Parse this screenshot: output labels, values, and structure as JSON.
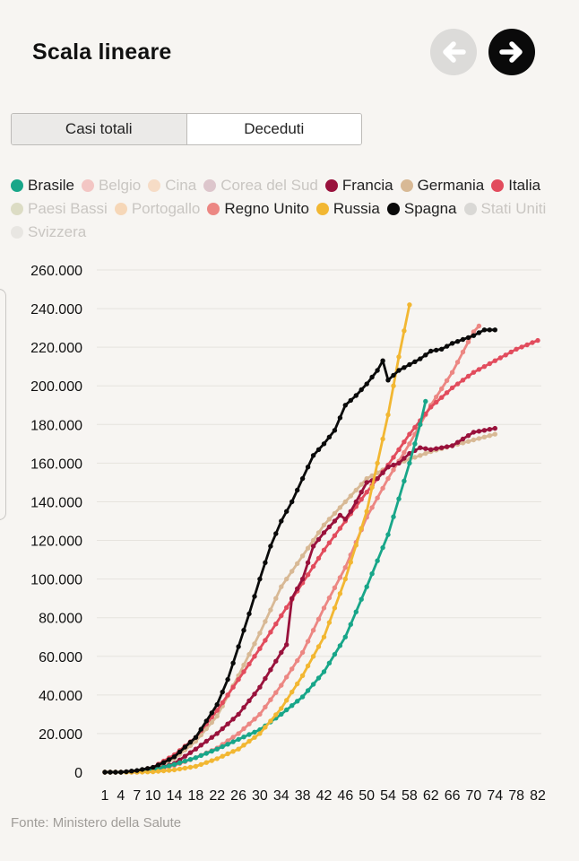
{
  "header": {
    "title": "Scala lineare"
  },
  "tabs": [
    {
      "label": "Casi totali",
      "active": true
    },
    {
      "label": "Deceduti",
      "active": false
    }
  ],
  "source": "Fonte: Ministero della Salute",
  "icons": {
    "prev": "arrow-left-icon",
    "next": "arrow-right-icon"
  },
  "chart_data": {
    "type": "line",
    "title": "",
    "xlabel": "",
    "ylabel": "",
    "x_ticks": [
      1,
      4,
      7,
      10,
      14,
      18,
      22,
      26,
      30,
      34,
      38,
      42,
      46,
      50,
      54,
      58,
      62,
      66,
      70,
      74,
      78,
      82
    ],
    "xlim": [
      1,
      82
    ],
    "y_ticks": [
      0,
      20000,
      40000,
      60000,
      80000,
      100000,
      120000,
      140000,
      160000,
      180000,
      200000,
      220000,
      240000,
      260000
    ],
    "y_tick_labels": [
      "0",
      "20.000",
      "40.000",
      "60.000",
      "80.000",
      "100.000",
      "120.000",
      "140.000",
      "160.000",
      "180.000",
      "200.000",
      "220.000",
      "240.000",
      "260.000"
    ],
    "ylim": [
      0,
      260000
    ],
    "grid": true,
    "legend_position": "top",
    "series": [
      {
        "name": "Brasile",
        "color": "#18a689",
        "active": true,
        "points": [
          [
            1,
            0
          ],
          [
            4,
            0
          ],
          [
            7,
            200
          ],
          [
            10,
            1200
          ],
          [
            14,
            4000
          ],
          [
            18,
            7500
          ],
          [
            22,
            12000
          ],
          [
            26,
            17000
          ],
          [
            30,
            22000
          ],
          [
            34,
            30000
          ],
          [
            38,
            39000
          ],
          [
            42,
            52000
          ],
          [
            46,
            70000
          ],
          [
            50,
            96000
          ],
          [
            54,
            123000
          ],
          [
            58,
            160000
          ],
          [
            60,
            180000
          ],
          [
            61,
            192000
          ]
        ]
      },
      {
        "name": "Belgio",
        "color": "#f3c6c4",
        "active": false,
        "points": []
      },
      {
        "name": "Cina",
        "color": "#f6dcc6",
        "active": false,
        "points": []
      },
      {
        "name": "Corea del Sud",
        "color": "#ddc6cc",
        "active": false,
        "points": []
      },
      {
        "name": "Francia",
        "color": "#99123c",
        "active": true,
        "points": [
          [
            1,
            0
          ],
          [
            4,
            0
          ],
          [
            7,
            100
          ],
          [
            10,
            1200
          ],
          [
            14,
            4500
          ],
          [
            18,
            12000
          ],
          [
            22,
            20000
          ],
          [
            26,
            30000
          ],
          [
            30,
            44000
          ],
          [
            34,
            62000
          ],
          [
            35,
            66000
          ],
          [
            36,
            90000
          ],
          [
            38,
            100000
          ],
          [
            40,
            117000
          ],
          [
            42,
            124000
          ],
          [
            44,
            130000
          ],
          [
            45,
            133000
          ],
          [
            46,
            131000
          ],
          [
            47,
            135000
          ],
          [
            48,
            140000
          ],
          [
            50,
            150000
          ],
          [
            52,
            152000
          ],
          [
            54,
            158000
          ],
          [
            56,
            160000
          ],
          [
            58,
            165000
          ],
          [
            60,
            168000
          ],
          [
            62,
            167000
          ],
          [
            66,
            169000
          ],
          [
            70,
            176000
          ],
          [
            74,
            178000
          ]
        ]
      },
      {
        "name": "Germania",
        "color": "#d8b995",
        "active": true,
        "points": [
          [
            1,
            0
          ],
          [
            4,
            0
          ],
          [
            7,
            300
          ],
          [
            10,
            2000
          ],
          [
            14,
            7000
          ],
          [
            18,
            16000
          ],
          [
            22,
            29000
          ],
          [
            26,
            50000
          ],
          [
            30,
            72000
          ],
          [
            34,
            96000
          ],
          [
            38,
            112000
          ],
          [
            42,
            128000
          ],
          [
            46,
            140000
          ],
          [
            50,
            152000
          ],
          [
            54,
            158000
          ],
          [
            58,
            162000
          ],
          [
            62,
            166000
          ],
          [
            66,
            169000
          ],
          [
            70,
            172000
          ],
          [
            74,
            175000
          ]
        ]
      },
      {
        "name": "Italia",
        "color": "#e24c5d",
        "active": true,
        "points": [
          [
            1,
            0
          ],
          [
            4,
            0
          ],
          [
            7,
            600
          ],
          [
            10,
            2500
          ],
          [
            14,
            9000
          ],
          [
            18,
            18000
          ],
          [
            22,
            32000
          ],
          [
            26,
            48000
          ],
          [
            30,
            64000
          ],
          [
            34,
            81000
          ],
          [
            38,
            98000
          ],
          [
            42,
            115000
          ],
          [
            46,
            130000
          ],
          [
            50,
            145000
          ],
          [
            54,
            159000
          ],
          [
            58,
            175000
          ],
          [
            62,
            189000
          ],
          [
            66,
            199000
          ],
          [
            70,
            207000
          ],
          [
            74,
            213000
          ],
          [
            78,
            219000
          ],
          [
            82,
            223500
          ]
        ]
      },
      {
        "name": "Paesi Bassi",
        "color": "#dcdcc4",
        "active": false,
        "points": []
      },
      {
        "name": "Portogallo",
        "color": "#f6d7b8",
        "active": false,
        "points": []
      },
      {
        "name": "Regno Unito",
        "color": "#ec8783",
        "active": true,
        "points": [
          [
            1,
            0
          ],
          [
            4,
            0
          ],
          [
            7,
            100
          ],
          [
            10,
            800
          ],
          [
            14,
            3500
          ],
          [
            18,
            7500
          ],
          [
            22,
            12500
          ],
          [
            26,
            20000
          ],
          [
            30,
            30000
          ],
          [
            34,
            45000
          ],
          [
            38,
            62000
          ],
          [
            42,
            85000
          ],
          [
            46,
            106000
          ],
          [
            50,
            132000
          ],
          [
            54,
            152000
          ],
          [
            58,
            170000
          ],
          [
            62,
            190000
          ],
          [
            66,
            207000
          ],
          [
            70,
            228000
          ],
          [
            71,
            231000
          ]
        ]
      },
      {
        "name": "Russia",
        "color": "#f2b732",
        "active": true,
        "points": [
          [
            1,
            0
          ],
          [
            4,
            0
          ],
          [
            7,
            0
          ],
          [
            10,
            200
          ],
          [
            14,
            1200
          ],
          [
            18,
            3000
          ],
          [
            22,
            7000
          ],
          [
            26,
            12000
          ],
          [
            30,
            20000
          ],
          [
            34,
            33000
          ],
          [
            38,
            50000
          ],
          [
            42,
            70000
          ],
          [
            46,
            100000
          ],
          [
            50,
            135000
          ],
          [
            54,
            185000
          ],
          [
            56,
            215000
          ],
          [
            58,
            242000
          ]
        ]
      },
      {
        "name": "Spagna",
        "color": "#0a0a0a",
        "active": true,
        "points": [
          [
            1,
            0
          ],
          [
            4,
            0
          ],
          [
            7,
            900
          ],
          [
            10,
            2500
          ],
          [
            12,
            5000
          ],
          [
            14,
            8000
          ],
          [
            18,
            18000
          ],
          [
            22,
            35000
          ],
          [
            24,
            48000
          ],
          [
            26,
            65000
          ],
          [
            28,
            82000
          ],
          [
            30,
            100000
          ],
          [
            32,
            117000
          ],
          [
            34,
            130000
          ],
          [
            36,
            140000
          ],
          [
            38,
            152000
          ],
          [
            40,
            164000
          ],
          [
            42,
            170000
          ],
          [
            44,
            177000
          ],
          [
            46,
            190000
          ],
          [
            48,
            195000
          ],
          [
            50,
            201000
          ],
          [
            52,
            208000
          ],
          [
            53,
            213000
          ],
          [
            54,
            203000
          ],
          [
            56,
            208000
          ],
          [
            58,
            211000
          ],
          [
            60,
            214000
          ],
          [
            62,
            218000
          ],
          [
            64,
            219000
          ],
          [
            66,
            222000
          ],
          [
            68,
            224000
          ],
          [
            70,
            226000
          ],
          [
            72,
            229000
          ],
          [
            74,
            229000
          ]
        ]
      },
      {
        "name": "Stati Uniti",
        "color": "#d9d8d5",
        "active": false,
        "points": []
      },
      {
        "name": "Svizzera",
        "color": "#e8e6e2",
        "active": false,
        "points": []
      }
    ]
  }
}
